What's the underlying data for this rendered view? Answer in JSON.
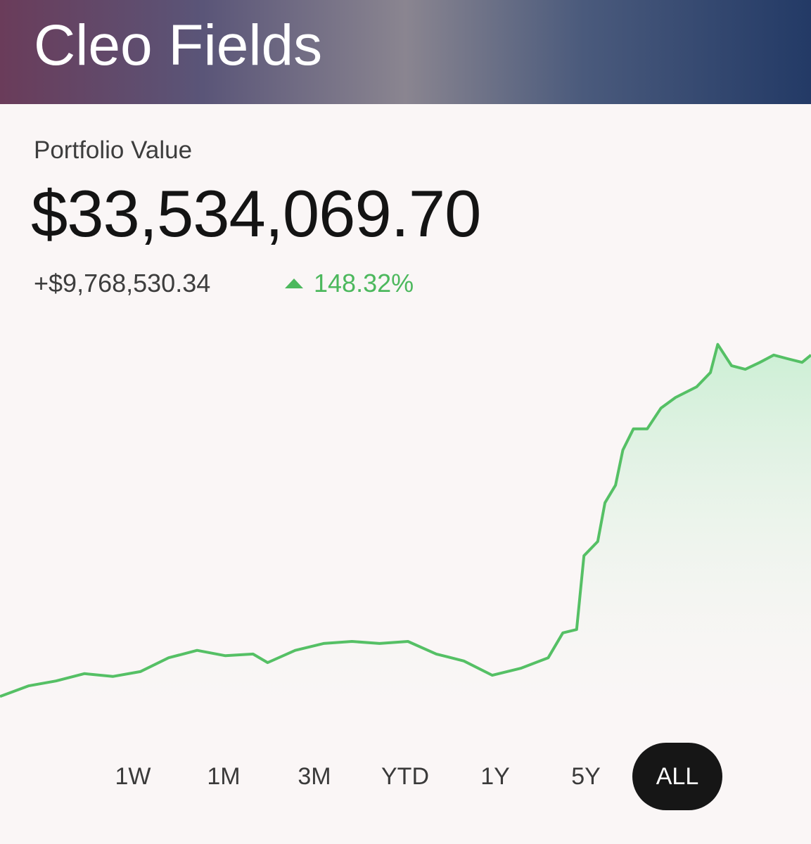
{
  "header": {
    "title": "Cleo Fields"
  },
  "portfolio": {
    "label": "Portfolio Value",
    "value": "$33,534,069.70",
    "change": "+$9,768,530.34",
    "change_percent": "148.32%"
  },
  "chart_data": {
    "type": "line",
    "color": "#55c065",
    "x": [
      0,
      3.5,
      6.9,
      10.4,
      13.9,
      17.3,
      20.8,
      24.3,
      27.8,
      31.2,
      33,
      36.4,
      39.9,
      43.4,
      46.8,
      50.3,
      53.8,
      57.2,
      60.7,
      64.2,
      67.6,
      69.4,
      71.1,
      72,
      73.7,
      74.6,
      75.9,
      76.8,
      78.1,
      79.8,
      81.5,
      83.3,
      85.9,
      87.6,
      88.5,
      90.2,
      91.9,
      93.7,
      95.4,
      97.1,
      98.9,
      100
    ],
    "values": [
      10.3,
      12.9,
      14.1,
      15.9,
      15.2,
      16.4,
      19.8,
      21.6,
      20.3,
      20.7,
      18.6,
      21.6,
      23.3,
      23.8,
      23.3,
      23.8,
      20.7,
      19.0,
      15.5,
      17.2,
      19.8,
      25.9,
      26.7,
      44.8,
      48.3,
      57.8,
      62.1,
      70.7,
      75.9,
      75.9,
      81.0,
      83.6,
      86.2,
      89.7,
      96.6,
      91.4,
      90.5,
      92.2,
      94.0,
      93.1,
      92.2,
      94.0
    ],
    "xlim": [
      0,
      100
    ],
    "ylim": [
      0,
      100
    ]
  },
  "range_buttons": [
    {
      "label": "1W",
      "active": false
    },
    {
      "label": "1M",
      "active": false
    },
    {
      "label": "3M",
      "active": false
    },
    {
      "label": "YTD",
      "active": false
    },
    {
      "label": "1Y",
      "active": false
    },
    {
      "label": "5Y",
      "active": false
    },
    {
      "label": "ALL",
      "active": true
    }
  ]
}
